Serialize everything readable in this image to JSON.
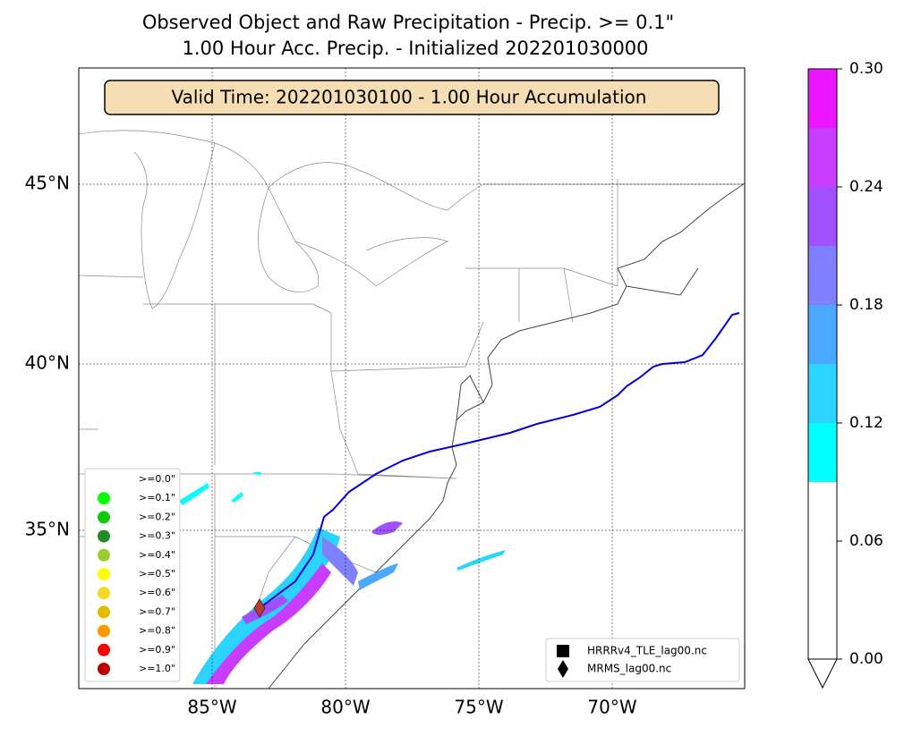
{
  "title": [
    "Observed Object and Raw Precipitation - Precip. >= 0.1\"",
    "1.00 Hour Acc. Precip. - Initialized 202201030000"
  ],
  "annotation": "Valid Time: 202201030100 - 1.00 Hour Accumulation",
  "lat_ticks": [
    {
      "value": 45,
      "label": "45°N"
    },
    {
      "value": 40,
      "label": "40°N"
    },
    {
      "value": 35,
      "label": "35°N"
    }
  ],
  "lon_ticks": [
    {
      "value": -85,
      "label": "85°W"
    },
    {
      "value": -80,
      "label": "80°W"
    },
    {
      "value": -75,
      "label": "75°W"
    },
    {
      "value": -70,
      "label": "70°W"
    }
  ],
  "colorbar": {
    "clim": [
      0,
      0.3
    ],
    "ticks": [
      {
        "value": 0,
        "label": "0.00"
      },
      {
        "value": 0.06,
        "label": "0.06"
      },
      {
        "value": 0.12,
        "label": "0.12"
      },
      {
        "value": 0.18,
        "label": "0.18"
      },
      {
        "value": 0.24,
        "label": "0.24"
      },
      {
        "value": 0.3,
        "label": "0.30"
      }
    ],
    "bounds": [
      0,
      0.09,
      0.12,
      0.15,
      0.18,
      0.21,
      0.24,
      0.27,
      0.3
    ],
    "colors": [
      "#ffffff",
      "#00ffff",
      "#2ad4ff",
      "#4aa8ff",
      "#8080ff",
      "#a050ff",
      "#c83cff",
      "#ee16ff"
    ]
  },
  "legend_thresholds": [
    {
      "label": ">=0.0\"",
      "color": "#ffffff"
    },
    {
      "label": ">=0.1\"",
      "color": "#00ff00"
    },
    {
      "label": ">=0.2\"",
      "color": "#10c810"
    },
    {
      "label": ">=0.3\"",
      "color": "#228b22"
    },
    {
      "label": ">=0.4\"",
      "color": "#9acd32"
    },
    {
      "label": ">=0.5\"",
      "color": "#ffff00"
    },
    {
      "label": ">=0.6\"",
      "color": "#f8d820"
    },
    {
      "label": ">=0.7\"",
      "color": "#e6b800"
    },
    {
      "label": ">=0.8\"",
      "color": "#ff9900"
    },
    {
      "label": ">=0.9\"",
      "color": "#ff0000"
    },
    {
      "label": ">=1.0\"",
      "color": "#c00000"
    }
  ],
  "legend_objects": [
    {
      "label": "HRRRv4_TLE_lag00.nc",
      "marker": "square"
    },
    {
      "label": "MRMS_lag00.nc",
      "marker": "diamond"
    }
  ]
}
